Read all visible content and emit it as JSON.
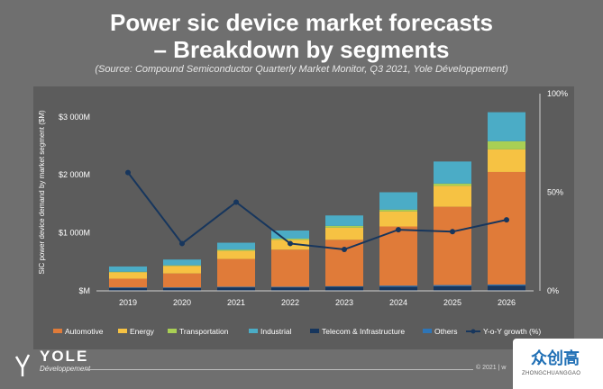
{
  "header": {
    "title_line1": "Power sic device market forecasts",
    "title_line2": "– Breakdown by segments",
    "source": "(Source: Compound Semiconductor Quarterly Market Monitor, Q3 2021, Yole Développement)"
  },
  "chart_data": {
    "type": "bar",
    "stacked": true,
    "ylabel": "SiC power device demand by market segment ($M)",
    "y_ticks": [
      "$M",
      "$1 000M",
      "$2 000M",
      "$3 000M"
    ],
    "ylim": [
      0,
      3400
    ],
    "y2_ticks": [
      "0%",
      "50%",
      "100%"
    ],
    "y2lim": [
      0,
      100
    ],
    "categories": [
      "2019",
      "2020",
      "2021",
      "2022",
      "2023",
      "2024",
      "2025",
      "2026"
    ],
    "series": [
      {
        "name": "Telecom & Infrastructure",
        "color": "#17365d",
        "values": [
          50,
          50,
          60,
          60,
          70,
          70,
          80,
          90
        ]
      },
      {
        "name": "Others",
        "color": "#2e75b6",
        "values": [
          10,
          10,
          10,
          10,
          10,
          20,
          20,
          20
        ]
      },
      {
        "name": "Automotive",
        "color": "#e07b39",
        "values": [
          150,
          240,
          480,
          640,
          800,
          1020,
          1350,
          1940
        ]
      },
      {
        "name": "Energy",
        "color": "#f6c243",
        "values": [
          110,
          130,
          140,
          170,
          210,
          260,
          360,
          390
        ]
      },
      {
        "name": "Transportation",
        "color": "#a9cf54",
        "values": [
          10,
          10,
          20,
          20,
          30,
          30,
          40,
          140
        ]
      },
      {
        "name": "Industrial",
        "color": "#4bacc6",
        "values": [
          90,
          100,
          120,
          140,
          180,
          300,
          380,
          500
        ]
      }
    ],
    "line": {
      "name": "Y-o-Y growth (%)",
      "color": "#17365d",
      "values": [
        60,
        24,
        45,
        24,
        21,
        31,
        30,
        36
      ]
    },
    "legend": [
      "Automotive",
      "Energy",
      "Transportation",
      "Industrial",
      "Telecom & Infrastructure",
      "Others",
      "Y-o-Y growth (%)"
    ],
    "legend_position": "bottom"
  },
  "footer": {
    "logo_name": "YOLE",
    "logo_sub": "Développement",
    "copyright": "© 2021 | w"
  },
  "watermark": {
    "text": "众创高",
    "sub": "ZHONGCHUANGGAO"
  }
}
